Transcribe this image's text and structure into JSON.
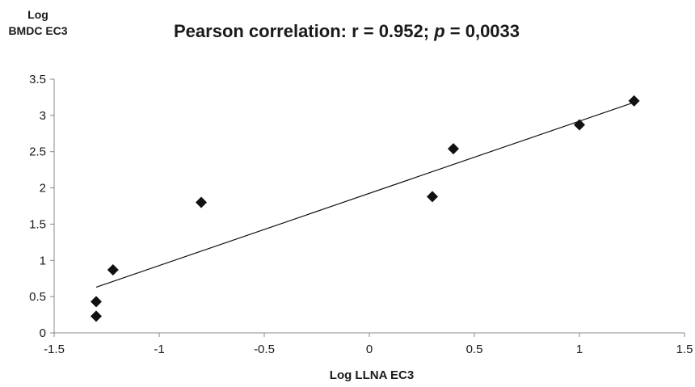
{
  "chart_data": {
    "type": "scatter",
    "title_prefix": "Pearson correlation: r = 0.952; ",
    "title_p": "p",
    "title_suffix": " = 0,0033",
    "ylabel_line1": "Log",
    "ylabel_line2": "BMDC EC3",
    "xlabel": "Log LLNA EC3",
    "xlim": [
      -1.5,
      1.5
    ],
    "ylim": [
      0,
      3.5
    ],
    "xticks": [
      -1.5,
      -1,
      -0.5,
      0,
      0.5,
      1,
      1.5
    ],
    "yticks": [
      0,
      0.5,
      1,
      1.5,
      2,
      2.5,
      3,
      3.5
    ],
    "grid": false,
    "points": [
      {
        "x": -1.3,
        "y": 0.23
      },
      {
        "x": -1.3,
        "y": 0.43
      },
      {
        "x": -1.22,
        "y": 0.87
      },
      {
        "x": -0.8,
        "y": 1.8
      },
      {
        "x": 0.3,
        "y": 1.88
      },
      {
        "x": 0.4,
        "y": 2.54
      },
      {
        "x": 1.0,
        "y": 2.87
      },
      {
        "x": 1.26,
        "y": 3.2
      }
    ],
    "trendline": {
      "x1": -1.3,
      "y1": 0.63,
      "x2": 1.26,
      "y2": 3.18
    },
    "marker_color": "#111111",
    "line_color": "#111111"
  }
}
